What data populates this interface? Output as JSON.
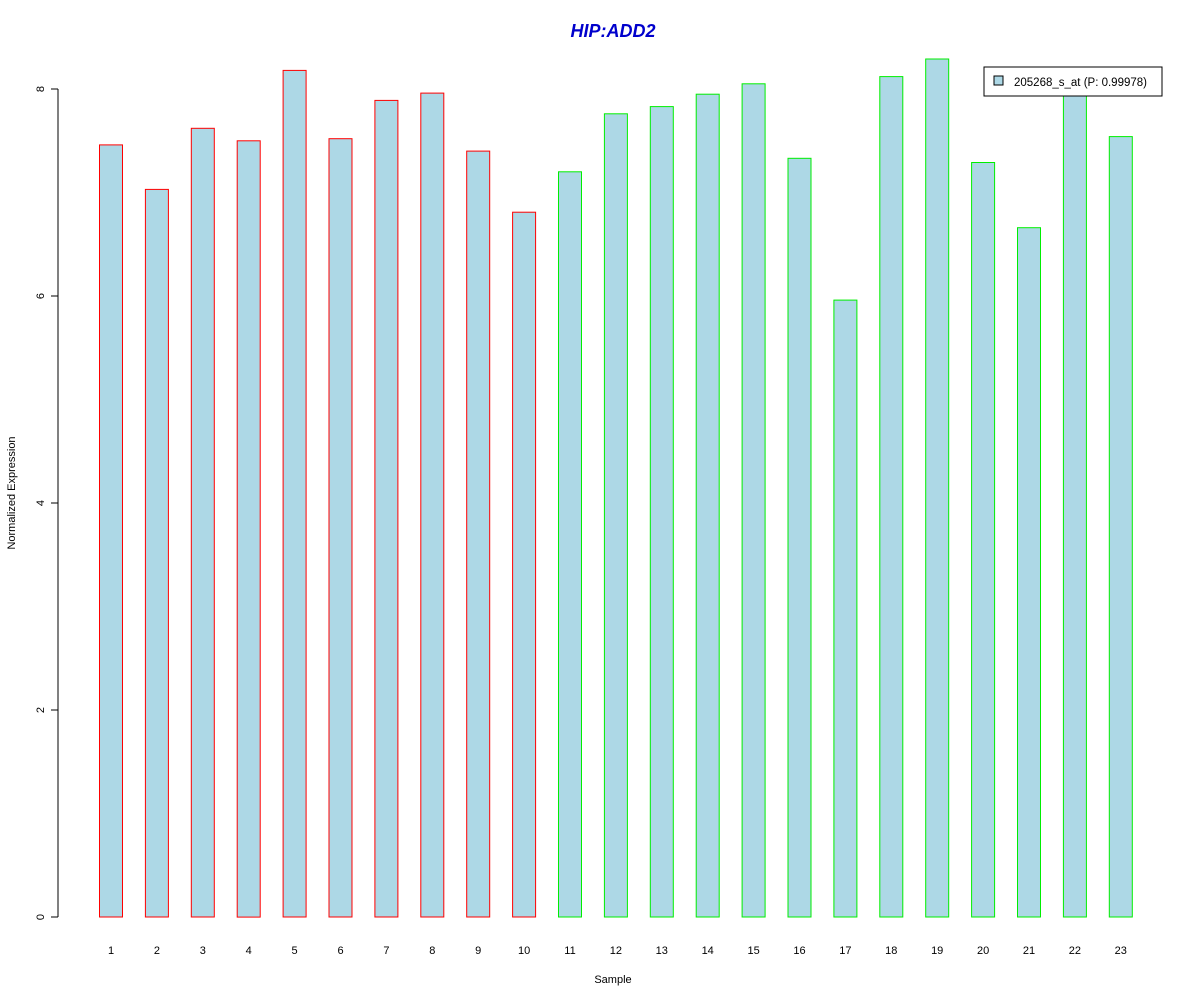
{
  "chart_data": {
    "type": "bar",
    "title": "HIP:ADD2",
    "title_color": "#0000cc",
    "xlabel": "Sample",
    "ylabel": "Normalized Expression",
    "categories": [
      "1",
      "2",
      "3",
      "4",
      "5",
      "6",
      "7",
      "8",
      "9",
      "10",
      "11",
      "12",
      "13",
      "14",
      "15",
      "16",
      "17",
      "18",
      "19",
      "20",
      "21",
      "22",
      "23"
    ],
    "series": [
      {
        "name": "205268_s_at (P: 0.99978)",
        "values": [
          7.46,
          7.03,
          7.62,
          7.5,
          8.18,
          7.52,
          7.89,
          7.96,
          7.4,
          6.81,
          7.2,
          7.76,
          7.83,
          7.95,
          8.05,
          7.33,
          5.96,
          8.12,
          8.29,
          7.29,
          6.66,
          8.0,
          7.54
        ]
      }
    ],
    "groups": [
      {
        "samples": [
          1,
          10
        ],
        "outline_color": "#ff0000"
      },
      {
        "samples": [
          11,
          23
        ],
        "outline_color": "#00ee00"
      }
    ],
    "bar_fill": "#add8e6",
    "ylim": [
      0,
      8.4
    ],
    "yticks": [
      "0",
      "2",
      "4",
      "6",
      "8"
    ],
    "grid": false,
    "legend_position": "top-right"
  }
}
